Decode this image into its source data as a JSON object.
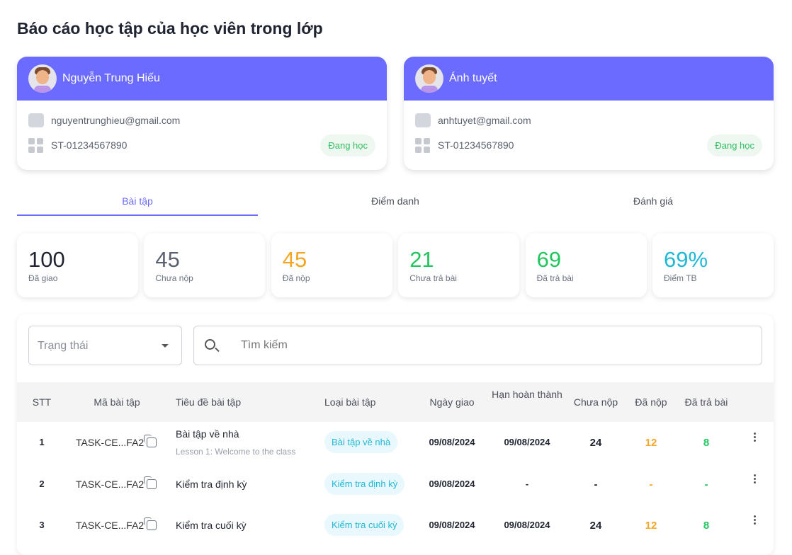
{
  "title": "Báo cáo học tập của học viên trong lớp",
  "students": [
    {
      "name": "Nguyễn Trung Hiếu",
      "email": "nguyentrunghieu@gmail.com",
      "id": "ST-01234567890",
      "status": "Đang học"
    },
    {
      "name": "Ánh tuyết",
      "email": "anhtuyet@gmail.com",
      "id": "ST-01234567890",
      "status": "Đang học"
    }
  ],
  "tabs": [
    "Bài tập",
    "Điểm danh",
    "Đánh giá"
  ],
  "stats": [
    {
      "value": "100",
      "label": "Đã giao",
      "color": "#1f2430"
    },
    {
      "value": "45",
      "label": "Chưa nộp",
      "color": "#5c6370"
    },
    {
      "value": "45",
      "label": "Đã nộp",
      "color": "#f5a623"
    },
    {
      "value": "21",
      "label": "Chưa trả bài",
      "color": "#22c55e"
    },
    {
      "value": "69",
      "label": "Đã trả bài",
      "color": "#22c55e"
    },
    {
      "value": "69%",
      "label": "Điểm TB",
      "color": "#1fb8d6"
    }
  ],
  "filter": {
    "status_placeholder": "Trạng thái",
    "search_placeholder": "Tìm kiếm"
  },
  "table": {
    "headers": [
      "STT",
      "Mã bài tập",
      "Tiêu đề bài tập",
      "Loại bài tập",
      "Ngày giao",
      "Hạn hoàn thành",
      "Chưa nộp",
      "Đã nộp",
      "Đã trả bài"
    ],
    "rows": [
      {
        "stt": "1",
        "code": "TASK-CE...FA2",
        "title": "Bài tập về nhà",
        "subtitle": "Lesson 1: Welcome to the class",
        "type": "Bài tập về nhà",
        "assigned": "09/08/2024",
        "due": "09/08/2024",
        "not_submitted": "24",
        "submitted": "12",
        "returned": "8"
      },
      {
        "stt": "2",
        "code": "TASK-CE...FA2",
        "title": "Kiểm tra định kỳ",
        "subtitle": "",
        "type": "Kiểm tra định kỳ",
        "assigned": "09/08/2024",
        "due": "-",
        "not_submitted": "-",
        "submitted": "-",
        "returned": "-"
      },
      {
        "stt": "3",
        "code": "TASK-CE...FA2",
        "title": "Kiểm tra cuối kỳ",
        "subtitle": "",
        "type": "Kiểm tra cuối kỳ",
        "assigned": "09/08/2024",
        "due": "09/08/2024",
        "not_submitted": "24",
        "submitted": "12",
        "returned": "8"
      }
    ]
  }
}
